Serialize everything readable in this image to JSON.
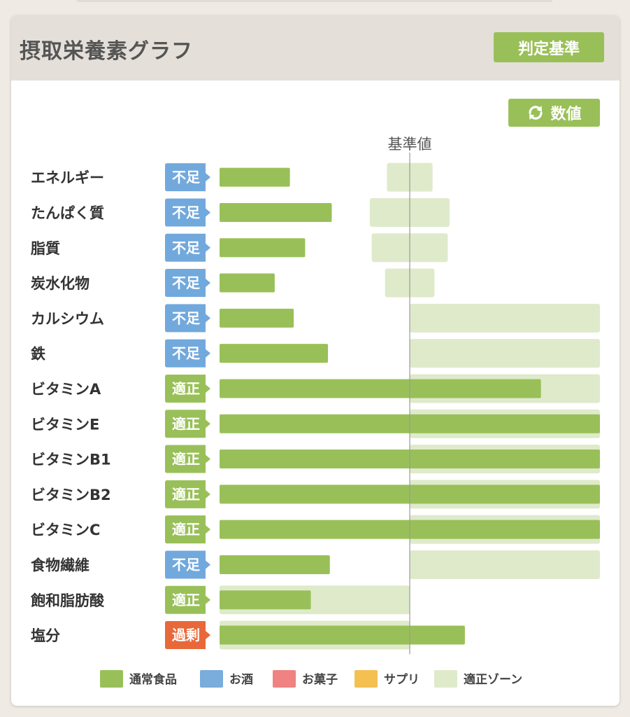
{
  "header": {
    "title": "摂取栄養素グラフ",
    "criteria_button": "判定基準"
  },
  "controls": {
    "values_button": "数値"
  },
  "colors": {
    "normal_food": "#99c058",
    "alcohol": "#7aacdc",
    "snack": "#f08282",
    "supplement": "#f4c052",
    "appropriate_zone": "#dfeacb",
    "status_insufficient": "#72a9dd",
    "status_appropriate": "#99c058",
    "status_excess": "#e8683a"
  },
  "status_colors": {
    "不足": "#72a9dd",
    "適正": "#99c058",
    "過剰": "#e8683a"
  },
  "chart_data": {
    "type": "bar",
    "orientation": "horizontal",
    "reference_line_label": "基準値",
    "reference_value": 100,
    "xlim": [
      0,
      200
    ],
    "categories": [
      "エネルギー",
      "たんぱく質",
      "脂質",
      "炭水化物",
      "カルシウム",
      "鉄",
      "ビタミンA",
      "ビタミンE",
      "ビタミンB1",
      "ビタミンB2",
      "ビタミンC",
      "食物繊維",
      "飽和脂肪酸",
      "塩分"
    ],
    "status": [
      "不足",
      "不足",
      "不足",
      "不足",
      "不足",
      "不足",
      "適正",
      "適正",
      "適正",
      "適正",
      "適正",
      "不足",
      "適正",
      "過剰"
    ],
    "series": [
      {
        "name": "通常食品",
        "values": [
          37,
          59,
          45,
          29,
          39,
          57,
          169,
          200,
          200,
          200,
          200,
          58,
          48,
          129
        ]
      },
      {
        "name": "お酒",
        "values": [
          0,
          0,
          0,
          0,
          0,
          0,
          0,
          0,
          0,
          0,
          0,
          0,
          0,
          0
        ]
      },
      {
        "name": "お菓子",
        "values": [
          0,
          0,
          0,
          0,
          0,
          0,
          0,
          0,
          0,
          0,
          0,
          0,
          0,
          0
        ]
      },
      {
        "name": "サプリ",
        "values": [
          0,
          0,
          0,
          0,
          0,
          0,
          0,
          0,
          0,
          0,
          0,
          0,
          0,
          0
        ]
      }
    ],
    "appropriate_zones": [
      [
        88,
        112
      ],
      [
        79,
        121
      ],
      [
        80,
        120
      ],
      [
        87,
        113
      ],
      [
        100,
        200
      ],
      [
        100,
        200
      ],
      [
        100,
        200
      ],
      [
        100,
        200
      ],
      [
        100,
        200
      ],
      [
        100,
        200
      ],
      [
        100,
        200
      ],
      [
        100,
        200
      ],
      [
        0,
        100
      ],
      [
        0,
        100
      ]
    ],
    "legend": [
      "通常食品",
      "お酒",
      "お菓子",
      "サプリ",
      "適正ゾーン"
    ],
    "legend_position": "bottom"
  }
}
